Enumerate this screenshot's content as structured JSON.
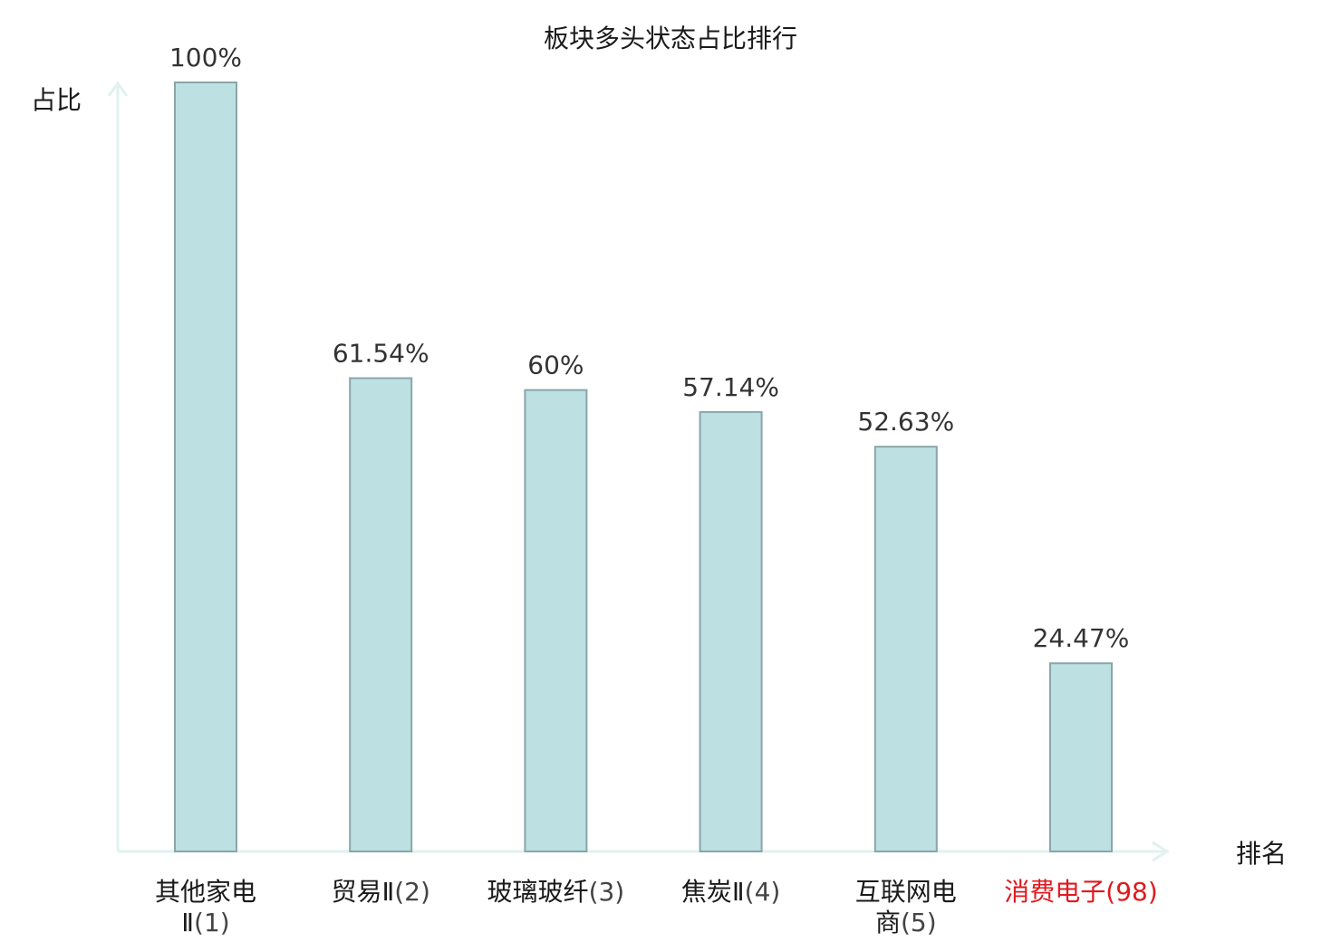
{
  "chart_data": {
    "type": "bar",
    "title": "板块多头状态占比排行",
    "ylabel": "占比",
    "xlabel": "排名",
    "ylim": [
      0,
      100
    ],
    "grid": false,
    "bar_color": "#bde0e3",
    "bar_border_color": "#8aa6aa",
    "axis_color": "#e0f2ef",
    "highlight_color": "#e0191e",
    "categories": [
      {
        "name_lines": [
          "其他家电",
          "Ⅱ"
        ],
        "rank": "(1)",
        "value": 100,
        "label": "100%",
        "highlight": false
      },
      {
        "name_lines": [
          "贸易Ⅱ"
        ],
        "rank": "(2)",
        "value": 61.54,
        "label": "61.54%",
        "highlight": false
      },
      {
        "name_lines": [
          "玻璃玻纤"
        ],
        "rank": "(3)",
        "value": 60,
        "label": "60%",
        "highlight": false
      },
      {
        "name_lines": [
          "焦炭Ⅱ"
        ],
        "rank": "(4)",
        "value": 57.14,
        "label": "57.14%",
        "highlight": false
      },
      {
        "name_lines": [
          "互联网电",
          "商"
        ],
        "rank": "(5)",
        "value": 52.63,
        "label": "52.63%",
        "highlight": false
      },
      {
        "name_lines": [
          "消费电子"
        ],
        "rank": "(98)",
        "value": 24.47,
        "label": "24.47%",
        "highlight": true
      }
    ]
  }
}
